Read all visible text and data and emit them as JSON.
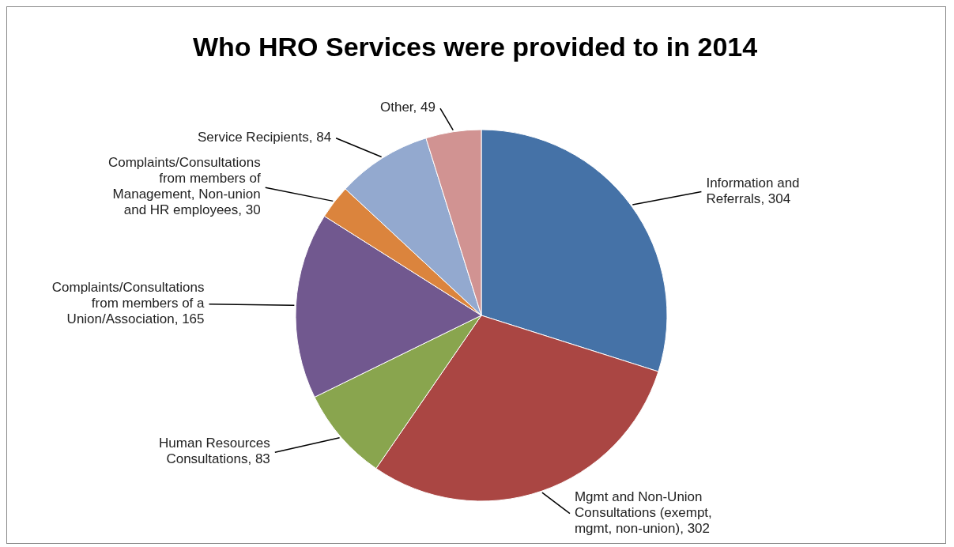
{
  "chart_data": {
    "type": "pie",
    "title": "Who HRO Services were provided to in 2014",
    "categories": [
      "Information and Referrals",
      "Mgmt and Non-Union Consultations (exempt, mgmt, non-union)",
      "Human Resources Consultations",
      "Complaints/Consultations from members of a Union/Association",
      "Complaints/Consultations from members of Management, Non-union and HR employees",
      "Service Recipients",
      "Other"
    ],
    "values": [
      304,
      302,
      83,
      165,
      30,
      84,
      49
    ],
    "colors": [
      "#4572a7",
      "#aa4643",
      "#89a54e",
      "#71588f",
      "#db843d",
      "#93a9cf",
      "#d19392"
    ],
    "value_labels": [
      ", 304",
      ", 302",
      ", 83",
      ", 165",
      ", 30",
      ", 84",
      ", 49"
    ]
  }
}
